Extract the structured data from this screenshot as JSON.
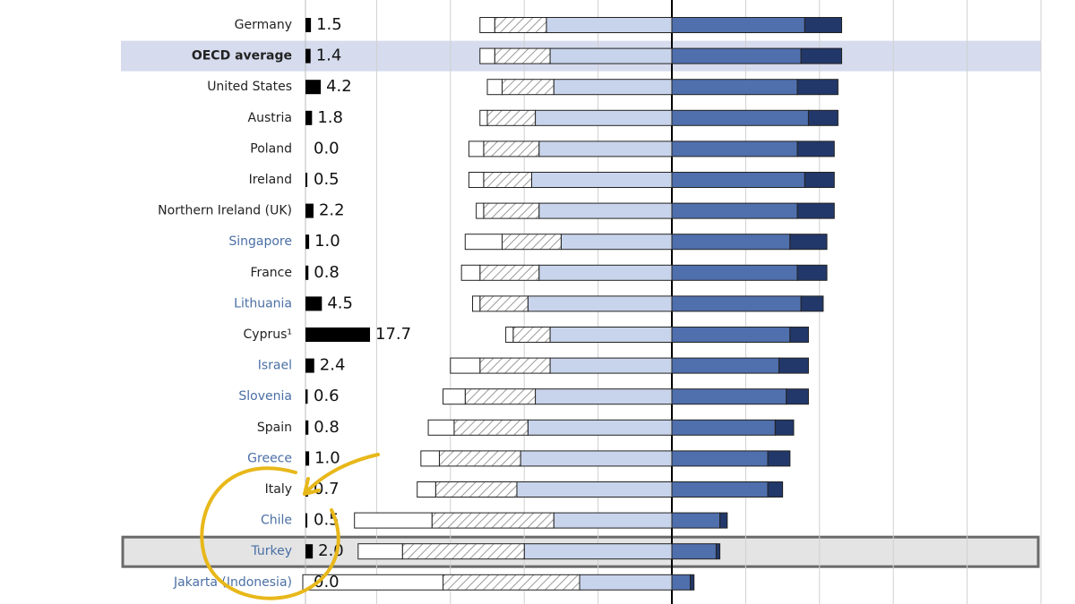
{
  "chart_data": {
    "type": "diverging-bar",
    "categories": [
      "Germany",
      "OECD average",
      "United States",
      "Austria",
      "Poland",
      "Ireland",
      "Northern Ireland (UK)",
      "Singapore",
      "France",
      "Lithuania",
      "Cyprus¹",
      "Israel",
      "Slovenia",
      "Spain",
      "Greece",
      "Italy",
      "Chile",
      "Turkey",
      "Jakarta (Indonesia)"
    ],
    "label_colors": [
      "#222222",
      "#222222",
      "#222222",
      "#222222",
      "#222222",
      "#222222",
      "#222222",
      "#4a6fa5",
      "#222222",
      "#4a6fa5",
      "#222222",
      "#4a6fa5",
      "#4a6fa5",
      "#222222",
      "#4a6fa5",
      "#222222",
      "#4a6fa5",
      "#4a6fa5",
      "#4a6fa5"
    ],
    "values": [
      1.5,
      1.4,
      4.2,
      1.8,
      0.0,
      0.5,
      2.2,
      1.0,
      0.8,
      4.5,
      17.7,
      2.4,
      0.6,
      0.8,
      1.0,
      0.7,
      0.5,
      2.0,
      0.0
    ],
    "value_labels": [
      "1.5",
      "1.4",
      "4.2",
      "1.8",
      "0.0",
      "0.5",
      "2.2",
      "1.0",
      "0.8",
      "4.5",
      "17.7",
      "2.4",
      "0.6",
      "0.8",
      "1.0",
      "0.7",
      "0.5",
      "2.0",
      "0.0"
    ],
    "value_color": "#000000",
    "band_index": 1,
    "band_color": "#d6dcee",
    "box_index": 17,
    "box_color": "#e4e4e4",
    "series": [
      {
        "color": "#c8d4eb",
        "values": [
          -17,
          -16.5,
          -16,
          -18.5,
          -18,
          -19,
          -18,
          -15,
          -18,
          -19.5,
          -16.5,
          -16.5,
          -18.5,
          -19.5,
          -20.5,
          -21,
          -16,
          -20,
          -12.5
        ]
      },
      {
        "color": "#ffffff",
        "pattern": "hatch",
        "values": [
          -7,
          -7.5,
          -7,
          -6.5,
          -7.5,
          -6.5,
          -7.5,
          -8,
          -8,
          -6.5,
          -5,
          -9.5,
          -9.5,
          -10,
          -11,
          -11,
          -16.5,
          -16.5,
          -18.5
        ]
      },
      {
        "color": "#ffffff",
        "values": [
          -2,
          -2,
          -2,
          -1,
          -2,
          -2,
          -1,
          -5,
          -2.5,
          -1,
          -1,
          -4,
          -3,
          -3.5,
          -2.5,
          -2.5,
          -10.5,
          -6,
          -19
        ]
      },
      {
        "color": "#4f6fad",
        "values": [
          18,
          17.5,
          17,
          18.5,
          17,
          18,
          17,
          16,
          17,
          17.5,
          16,
          14.5,
          15.5,
          14,
          13,
          13,
          6.5,
          6,
          2.5
        ]
      },
      {
        "color": "#22386a",
        "values": [
          5,
          5.5,
          5.5,
          4,
          5,
          4,
          5,
          5,
          4,
          3,
          2.5,
          4,
          3,
          2.5,
          3,
          2,
          1,
          0.5,
          0.5
        ]
      }
    ],
    "xlim": [
      -50,
      50
    ],
    "xticks": [
      -40,
      -30,
      -20,
      -10,
      0,
      10,
      20,
      30,
      40,
      50
    ],
    "grid": true
  }
}
